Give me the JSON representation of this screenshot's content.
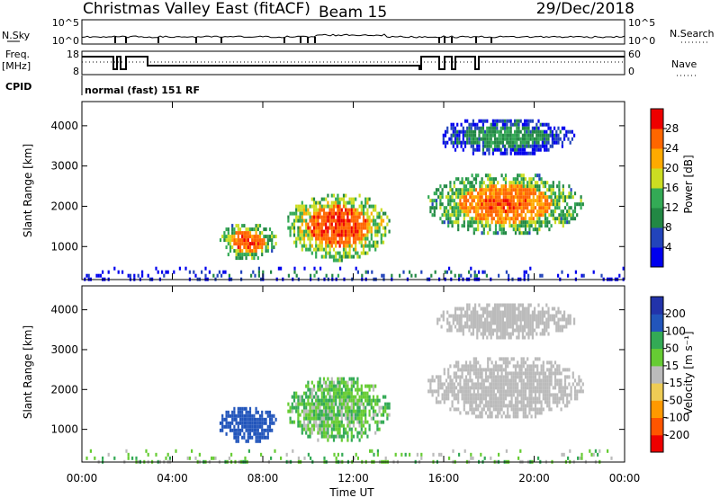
{
  "header": {
    "station": "Christmas Valley East (fitACF)",
    "beam": "Beam 15",
    "date": "29/Dec/2018"
  },
  "strip_panels": {
    "nsky": {
      "label": "N.Sky",
      "ticks": [
        "10^5",
        "10^0"
      ]
    },
    "nsearch": {
      "label": "N.Search",
      "ticks": [
        "10^5",
        "10^0"
      ]
    },
    "freq": {
      "label_line1": "Freq.",
      "label_line2": "[MHz]",
      "ticks": [
        "18",
        "8"
      ]
    },
    "nave": {
      "label": "Nave",
      "ticks": [
        "60",
        "0"
      ]
    },
    "cpid": {
      "label": "CPID",
      "value": "normal (fast) 151 RF"
    }
  },
  "chart_data": [
    {
      "type": "heatmap",
      "title": "",
      "quantity": "Power",
      "xlabel": "",
      "ylabel": "Slant Range [km]",
      "xlim": [
        "00:00",
        "24:00"
      ],
      "ylim": [
        180,
        4600
      ],
      "x_ticks": [
        "00:00",
        "04:00",
        "08:00",
        "12:00",
        "16:00",
        "20:00",
        "00:00"
      ],
      "y_ticks": [
        1000,
        2000,
        3000,
        4000
      ],
      "colorbar": {
        "label": "Power [dB]",
        "range": [
          0,
          32
        ],
        "ticks": [
          4,
          8,
          12,
          16,
          20,
          24,
          28
        ],
        "colors": [
          "#0000ee",
          "#2244bb",
          "#228844",
          "#33aa55",
          "#ccdd22",
          "#ffaa00",
          "#ff6600",
          "#ee0000"
        ]
      },
      "regions": [
        {
          "t0": 6.0,
          "t1": 8.6,
          "r0": 700,
          "r1": 1650,
          "level": 18,
          "core": 27
        },
        {
          "t0": 9.0,
          "t1": 13.6,
          "r0": 700,
          "r1": 2400,
          "level": 20,
          "core": 28
        },
        {
          "t0": 15.2,
          "t1": 22.2,
          "r0": 1300,
          "r1": 2900,
          "level": 17,
          "core": 26
        },
        {
          "t0": 15.6,
          "t1": 21.8,
          "r0": 3300,
          "r1": 4250,
          "level": 8,
          "core": 12
        },
        {
          "t0": 0.0,
          "t1": 24.0,
          "r0": 180,
          "r1": 500,
          "level": 6,
          "core": 10
        }
      ]
    },
    {
      "type": "heatmap",
      "title": "",
      "quantity": "Velocity",
      "xlabel": "Time UT",
      "ylabel": "Slant Range [km]",
      "xlim": [
        "00:00",
        "24:00"
      ],
      "ylim": [
        180,
        4600
      ],
      "x_ticks": [
        "00:00",
        "04:00",
        "08:00",
        "12:00",
        "16:00",
        "20:00",
        "00:00"
      ],
      "y_ticks": [
        1000,
        2000,
        3000,
        4000
      ],
      "colorbar": {
        "label": "Velocity [m s⁻¹]",
        "ticks": [
          -200,
          -100,
          -50,
          -15,
          15,
          50,
          100,
          200
        ],
        "colors": [
          "#ee0000",
          "#ff5500",
          "#ff9900",
          "#eecc55",
          "#bbbbbb",
          "#66cc33",
          "#33aa55",
          "#2255bb",
          "#2233aa"
        ]
      },
      "regions": [
        {
          "t0": 6.0,
          "t1": 8.6,
          "r0": 700,
          "r1": 1650,
          "velocity": 150
        },
        {
          "t0": 9.0,
          "t1": 13.6,
          "r0": 700,
          "r1": 2400,
          "velocity": 40
        },
        {
          "t0": 15.2,
          "t1": 22.2,
          "r0": 1300,
          "r1": 2900,
          "velocity": 0
        },
        {
          "t0": 15.6,
          "t1": 21.8,
          "r0": 3300,
          "r1": 4250,
          "velocity": 0
        },
        {
          "t0": 0.0,
          "t1": 24.0,
          "r0": 180,
          "r1": 500,
          "velocity": 30
        }
      ]
    }
  ]
}
